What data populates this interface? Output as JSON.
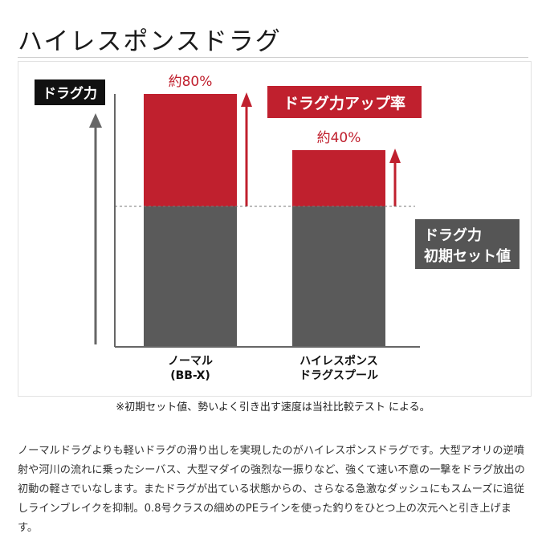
{
  "page": {
    "title": "ハイレスポンスドラグ",
    "footnote": "※初期セット値、勢いよく引き出す速度は当社比較テスト による。",
    "description": "ノーマルドラグよりも軽いドラグの滑り出しを実現したのがハイレスポンスドラグです。大型アオリの逆噴射や河川の流れに乗ったシーバス、大型マダイの強烈な一振りなど、強くて速い不意の一撃をドラグ放出の初動の軽さでいなします。またドラグが出ている状態からの、さらなる急激なダッシュにもスムーズに追従しラインブレイクを抑制。0.8号クラスの細めのPEラインを使った釣りをひとつ上の次元へと引き上げます。"
  },
  "colors": {
    "base": "#5a5a5a",
    "increase": "#c0202e",
    "label_dark": "#111111",
    "axis": "#666666"
  },
  "chart_data": {
    "type": "bar",
    "stacked": true,
    "ylabel": "ドラグ力",
    "badge": "ドラグ力アップ率",
    "reference_label": [
      "ドラグ力",
      "初期セット値"
    ],
    "categories": [
      [
        "ノーマル",
        "(BB-X)"
      ],
      [
        "ハイレスポンス",
        "ドラグスプール"
      ]
    ],
    "series": [
      {
        "name": "ドラグ力 初期セット値",
        "values": [
          100,
          100
        ]
      },
      {
        "values": [
          80,
          40
        ]
      }
    ],
    "data_labels": [
      "約80%",
      "約40%"
    ],
    "ylim": [
      0,
      180
    ],
    "y_ticks_shown": false,
    "grid": false
  }
}
